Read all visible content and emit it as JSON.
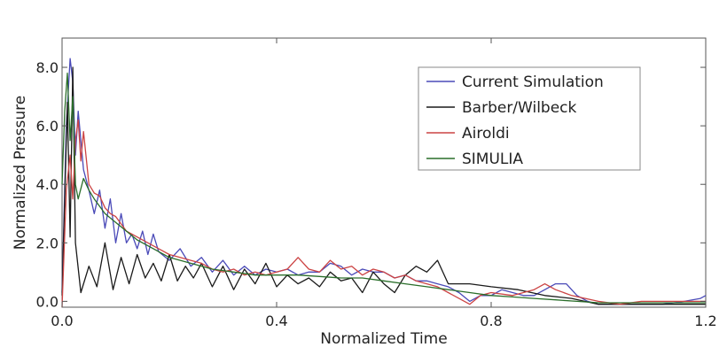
{
  "chart_data": {
    "type": "line",
    "title": "",
    "xlabel": "Normalized Time",
    "ylabel": "Normalized Pressure",
    "xlim": [
      0.0,
      1.2
    ],
    "ylim": [
      -0.2,
      9.0
    ],
    "x_ticks": [
      0.0,
      0.4,
      0.8,
      1.2
    ],
    "x_tick_labels": [
      "0.0",
      "0.4",
      "0.8",
      "1.2"
    ],
    "y_ticks": [
      0.0,
      2.0,
      4.0,
      6.0,
      8.0
    ],
    "y_tick_labels": [
      "0.0",
      "2.0",
      "4.0",
      "6.0",
      "8.0"
    ],
    "grid": false,
    "legend_position": "top-right",
    "series": [
      {
        "name": "Current Simulation",
        "color": "#4a4ab8",
        "x": [
          0.0,
          0.008,
          0.015,
          0.02,
          0.025,
          0.03,
          0.04,
          0.05,
          0.06,
          0.07,
          0.08,
          0.09,
          0.1,
          0.11,
          0.12,
          0.13,
          0.14,
          0.15,
          0.16,
          0.17,
          0.18,
          0.2,
          0.22,
          0.24,
          0.26,
          0.28,
          0.3,
          0.32,
          0.34,
          0.36,
          0.38,
          0.4,
          0.42,
          0.44,
          0.46,
          0.48,
          0.5,
          0.52,
          0.54,
          0.56,
          0.58,
          0.6,
          0.62,
          0.64,
          0.66,
          0.68,
          0.7,
          0.72,
          0.74,
          0.76,
          0.78,
          0.8,
          0.82,
          0.84,
          0.86,
          0.88,
          0.9,
          0.92,
          0.94,
          0.96,
          0.98,
          1.0,
          1.04,
          1.08,
          1.12,
          1.16,
          1.19,
          1.2
        ],
        "y": [
          0.3,
          6.0,
          8.3,
          7.5,
          5.0,
          6.5,
          4.5,
          3.8,
          3.0,
          3.8,
          2.5,
          3.5,
          2.0,
          3.0,
          2.0,
          2.3,
          1.8,
          2.4,
          1.6,
          2.3,
          1.7,
          1.4,
          1.8,
          1.2,
          1.5,
          1.0,
          1.4,
          0.9,
          1.2,
          0.9,
          1.1,
          1.0,
          1.1,
          0.9,
          1.0,
          1.0,
          1.3,
          1.2,
          0.9,
          1.1,
          1.0,
          1.0,
          0.8,
          0.9,
          0.7,
          0.7,
          0.6,
          0.5,
          0.3,
          0.0,
          0.2,
          0.2,
          0.4,
          0.3,
          0.2,
          0.2,
          0.4,
          0.6,
          0.6,
          0.2,
          0.0,
          -0.1,
          -0.1,
          -0.1,
          -0.1,
          0.0,
          0.1,
          0.2
        ]
      },
      {
        "name": "Barber/Wilbeck",
        "color": "#1a1a1a",
        "x": [
          0.0,
          0.01,
          0.015,
          0.02,
          0.025,
          0.035,
          0.05,
          0.065,
          0.08,
          0.095,
          0.11,
          0.125,
          0.14,
          0.155,
          0.17,
          0.185,
          0.2,
          0.215,
          0.23,
          0.245,
          0.26,
          0.28,
          0.3,
          0.32,
          0.34,
          0.36,
          0.38,
          0.4,
          0.42,
          0.44,
          0.46,
          0.48,
          0.5,
          0.52,
          0.54,
          0.56,
          0.58,
          0.6,
          0.62,
          0.64,
          0.66,
          0.68,
          0.7,
          0.72,
          0.74,
          0.76,
          0.8,
          0.85,
          0.9,
          0.95,
          1.0,
          1.05,
          1.1,
          1.15,
          1.2
        ],
        "y": [
          0.2,
          6.8,
          2.2,
          8.0,
          2.0,
          0.3,
          1.2,
          0.5,
          2.0,
          0.4,
          1.5,
          0.6,
          1.6,
          0.8,
          1.3,
          0.7,
          1.6,
          0.7,
          1.2,
          0.8,
          1.3,
          0.5,
          1.2,
          0.4,
          1.1,
          0.6,
          1.3,
          0.5,
          0.9,
          0.6,
          0.8,
          0.5,
          1.0,
          0.7,
          0.8,
          0.3,
          1.0,
          0.6,
          0.3,
          0.9,
          1.2,
          1.0,
          1.4,
          0.6,
          0.6,
          0.6,
          0.5,
          0.4,
          0.2,
          0.1,
          -0.1,
          -0.1,
          -0.1,
          -0.1,
          -0.1
        ]
      },
      {
        "name": "Airoldi",
        "color": "#cc4444",
        "x": [
          0.0,
          0.008,
          0.015,
          0.02,
          0.025,
          0.03,
          0.035,
          0.04,
          0.05,
          0.06,
          0.07,
          0.08,
          0.09,
          0.1,
          0.12,
          0.14,
          0.16,
          0.18,
          0.2,
          0.22,
          0.24,
          0.26,
          0.28,
          0.3,
          0.32,
          0.34,
          0.36,
          0.38,
          0.4,
          0.42,
          0.44,
          0.46,
          0.48,
          0.5,
          0.52,
          0.54,
          0.56,
          0.58,
          0.6,
          0.62,
          0.64,
          0.66,
          0.68,
          0.7,
          0.72,
          0.74,
          0.76,
          0.78,
          0.8,
          0.84,
          0.88,
          0.9,
          0.92,
          0.95,
          1.0,
          1.04,
          1.08,
          1.12,
          1.16,
          1.2
        ],
        "y": [
          -0.2,
          3.8,
          5.0,
          3.5,
          5.5,
          6.2,
          4.8,
          5.8,
          4.0,
          3.7,
          3.6,
          3.2,
          3.0,
          2.9,
          2.4,
          2.2,
          2.0,
          1.8,
          1.6,
          1.5,
          1.4,
          1.3,
          1.1,
          1.0,
          1.1,
          0.9,
          1.0,
          0.9,
          1.0,
          1.1,
          1.5,
          1.1,
          1.0,
          1.4,
          1.1,
          1.2,
          0.9,
          1.1,
          1.0,
          0.8,
          0.9,
          0.7,
          0.6,
          0.5,
          0.3,
          0.1,
          -0.1,
          0.2,
          0.3,
          0.2,
          0.4,
          0.6,
          0.4,
          0.2,
          0.0,
          -0.1,
          0.0,
          0.0,
          0.0,
          0.0
        ]
      },
      {
        "name": "SIMULIA",
        "color": "#2a6e2a",
        "x": [
          0.0,
          0.005,
          0.01,
          0.015,
          0.02,
          0.025,
          0.03,
          0.04,
          0.05,
          0.06,
          0.08,
          0.1,
          0.12,
          0.14,
          0.16,
          0.18,
          0.2,
          0.24,
          0.28,
          0.32,
          0.36,
          0.4,
          0.44,
          0.48,
          0.52,
          0.56,
          0.6,
          0.64,
          0.68,
          0.72,
          0.76,
          0.8,
          0.84,
          0.88,
          0.92,
          0.96,
          1.0,
          1.05,
          1.1,
          1.15,
          1.2
        ],
        "y": [
          4.0,
          6.5,
          7.8,
          5.5,
          7.0,
          4.0,
          3.5,
          4.2,
          3.8,
          3.5,
          3.0,
          2.7,
          2.4,
          2.1,
          1.9,
          1.7,
          1.5,
          1.3,
          1.1,
          1.0,
          0.9,
          0.9,
          0.9,
          0.85,
          0.8,
          0.8,
          0.7,
          0.6,
          0.5,
          0.4,
          0.3,
          0.2,
          0.15,
          0.1,
          0.05,
          0.0,
          -0.05,
          -0.05,
          -0.05,
          -0.05,
          -0.05
        ]
      }
    ]
  }
}
